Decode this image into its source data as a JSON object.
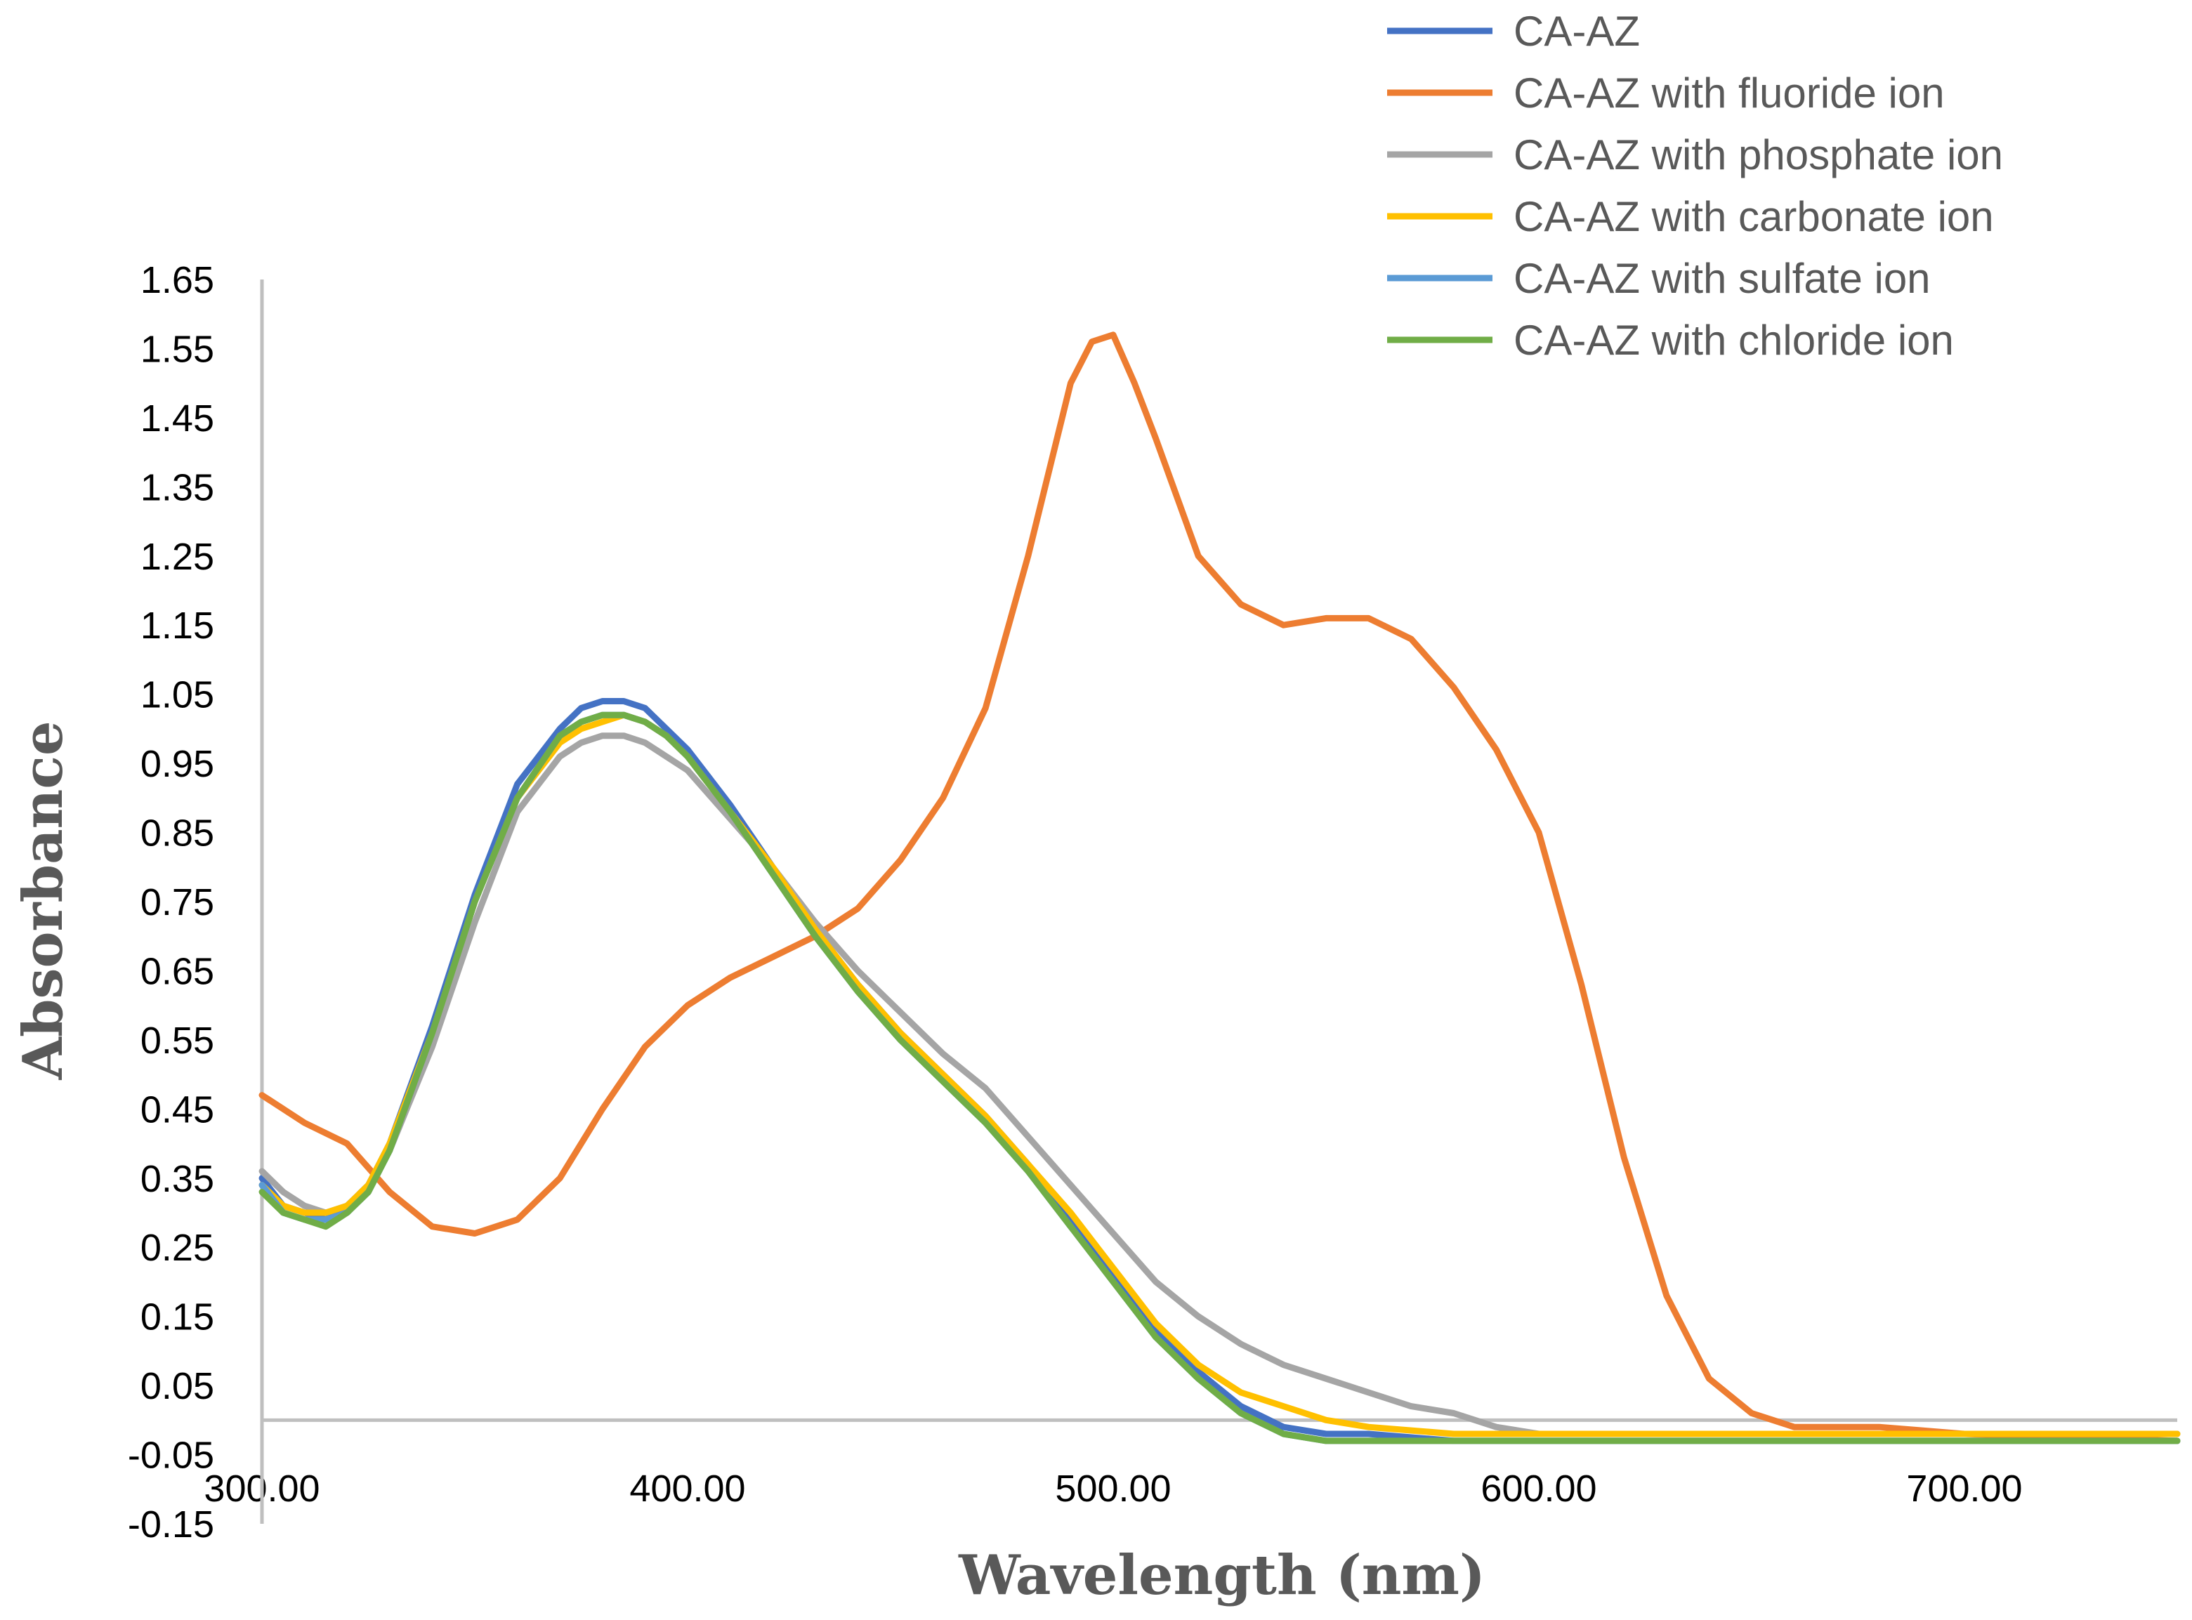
{
  "chart_data": {
    "type": "line",
    "title": "",
    "xlabel": "Wavelength (nm)",
    "ylabel": "Absorbance",
    "xlim": [
      300,
      750
    ],
    "ylim": [
      -0.15,
      1.65
    ],
    "x_ticks": [
      "300.00",
      "400.00",
      "500.00",
      "600.00",
      "700.00"
    ],
    "y_ticks": [
      "1.65",
      "1.55",
      "1.45",
      "1.35",
      "1.25",
      "1.15",
      "1.05",
      "0.95",
      "0.85",
      "0.75",
      "0.65",
      "0.55",
      "0.45",
      "0.35",
      "0.25",
      "0.15",
      "0.05",
      "-0.05",
      "-0.15"
    ],
    "grid": false,
    "legend_position": "top-right",
    "series": [
      {
        "name": "CA-AZ",
        "color": "#4472C4",
        "x": [
          300,
          305,
          310,
          315,
          320,
          325,
          330,
          340,
          350,
          360,
          370,
          375,
          380,
          385,
          390,
          395,
          400,
          410,
          420,
          430,
          440,
          450,
          460,
          470,
          480,
          490,
          500,
          510,
          520,
          530,
          540,
          550,
          560,
          580,
          600,
          620,
          650,
          700,
          750
        ],
        "y": [
          0.35,
          0.31,
          0.3,
          0.29,
          0.31,
          0.34,
          0.4,
          0.57,
          0.76,
          0.92,
          1.0,
          1.03,
          1.04,
          1.04,
          1.03,
          1.0,
          0.97,
          0.89,
          0.8,
          0.71,
          0.63,
          0.56,
          0.5,
          0.44,
          0.37,
          0.29,
          0.21,
          0.13,
          0.07,
          0.02,
          -0.01,
          -0.02,
          -0.02,
          -0.03,
          -0.03,
          -0.03,
          -0.03,
          -0.03,
          -0.03
        ]
      },
      {
        "name": "CA-AZ with fluoride ion",
        "color": "#ED7D31",
        "x": [
          300,
          310,
          320,
          330,
          340,
          350,
          355,
          360,
          370,
          380,
          390,
          400,
          410,
          420,
          430,
          440,
          450,
          460,
          470,
          480,
          490,
          495,
          500,
          505,
          510,
          520,
          530,
          540,
          550,
          555,
          560,
          570,
          580,
          590,
          600,
          610,
          620,
          630,
          640,
          650,
          660,
          680,
          700,
          750
        ],
        "y": [
          0.47,
          0.43,
          0.4,
          0.33,
          0.28,
          0.27,
          0.28,
          0.29,
          0.35,
          0.45,
          0.54,
          0.6,
          0.64,
          0.67,
          0.7,
          0.74,
          0.81,
          0.9,
          1.03,
          1.25,
          1.5,
          1.56,
          1.57,
          1.5,
          1.42,
          1.25,
          1.18,
          1.15,
          1.16,
          1.16,
          1.16,
          1.13,
          1.06,
          0.97,
          0.85,
          0.63,
          0.38,
          0.18,
          0.06,
          0.01,
          -0.01,
          -0.01,
          -0.02,
          -0.03
        ]
      },
      {
        "name": "CA-AZ with phosphate ion",
        "color": "#A5A5A5",
        "x": [
          300,
          305,
          310,
          315,
          320,
          325,
          330,
          340,
          350,
          360,
          370,
          375,
          380,
          385,
          390,
          395,
          400,
          410,
          420,
          430,
          440,
          450,
          460,
          470,
          480,
          490,
          500,
          510,
          520,
          530,
          540,
          550,
          560,
          570,
          580,
          590,
          600,
          610,
          620,
          650,
          700,
          750
        ],
        "y": [
          0.36,
          0.33,
          0.31,
          0.3,
          0.31,
          0.34,
          0.39,
          0.54,
          0.72,
          0.88,
          0.96,
          0.98,
          0.99,
          0.99,
          0.98,
          0.96,
          0.94,
          0.87,
          0.8,
          0.72,
          0.65,
          0.59,
          0.53,
          0.48,
          0.41,
          0.34,
          0.27,
          0.2,
          0.15,
          0.11,
          0.08,
          0.06,
          0.04,
          0.02,
          0.01,
          -0.01,
          -0.02,
          -0.02,
          -0.02,
          -0.02,
          -0.02,
          -0.02
        ]
      },
      {
        "name": "CA-AZ with carbonate ion",
        "color": "#FFC000",
        "x": [
          300,
          305,
          310,
          315,
          320,
          325,
          330,
          340,
          350,
          360,
          370,
          375,
          380,
          385,
          390,
          395,
          400,
          410,
          420,
          430,
          440,
          450,
          460,
          470,
          480,
          490,
          500,
          510,
          520,
          530,
          540,
          550,
          560,
          580,
          600,
          620,
          650,
          700,
          750
        ],
        "y": [
          0.34,
          0.31,
          0.3,
          0.3,
          0.31,
          0.34,
          0.4,
          0.56,
          0.75,
          0.9,
          0.98,
          1.0,
          1.01,
          1.02,
          1.01,
          0.99,
          0.96,
          0.88,
          0.8,
          0.71,
          0.63,
          0.56,
          0.5,
          0.44,
          0.37,
          0.3,
          0.22,
          0.14,
          0.08,
          0.04,
          0.02,
          0.0,
          -0.01,
          -0.02,
          -0.02,
          -0.02,
          -0.02,
          -0.02,
          -0.02
        ]
      },
      {
        "name": "CA-AZ with sulfate ion",
        "color": "#5B9BD5",
        "x": [
          300,
          305,
          310,
          315,
          320,
          325,
          330,
          340,
          350,
          360,
          370,
          375,
          380,
          385,
          390,
          395,
          400,
          410,
          420,
          430,
          440,
          450,
          460,
          470,
          480,
          490,
          500,
          510,
          520,
          530,
          540,
          550,
          560,
          580,
          600,
          620,
          650,
          700,
          750
        ],
        "y": [
          0.34,
          0.3,
          0.29,
          0.29,
          0.3,
          0.33,
          0.39,
          0.56,
          0.75,
          0.9,
          0.99,
          1.01,
          1.02,
          1.02,
          1.01,
          0.99,
          0.96,
          0.88,
          0.79,
          0.7,
          0.62,
          0.55,
          0.49,
          0.43,
          0.36,
          0.28,
          0.2,
          0.12,
          0.06,
          0.01,
          -0.02,
          -0.03,
          -0.03,
          -0.03,
          -0.03,
          -0.03,
          -0.03,
          -0.03,
          -0.03
        ]
      },
      {
        "name": "CA-AZ with chloride ion",
        "color": "#70AD47",
        "x": [
          300,
          305,
          310,
          315,
          320,
          325,
          330,
          340,
          350,
          360,
          370,
          375,
          380,
          385,
          390,
          395,
          400,
          410,
          420,
          430,
          440,
          450,
          460,
          470,
          480,
          490,
          500,
          510,
          520,
          530,
          540,
          550,
          560,
          580,
          600,
          620,
          650,
          700,
          750
        ],
        "y": [
          0.33,
          0.3,
          0.29,
          0.28,
          0.3,
          0.33,
          0.39,
          0.56,
          0.75,
          0.9,
          0.99,
          1.01,
          1.02,
          1.02,
          1.01,
          0.99,
          0.96,
          0.88,
          0.79,
          0.7,
          0.62,
          0.55,
          0.49,
          0.43,
          0.36,
          0.28,
          0.2,
          0.12,
          0.06,
          0.01,
          -0.02,
          -0.03,
          -0.03,
          -0.03,
          -0.03,
          -0.03,
          -0.03,
          -0.03,
          -0.03
        ]
      }
    ]
  }
}
